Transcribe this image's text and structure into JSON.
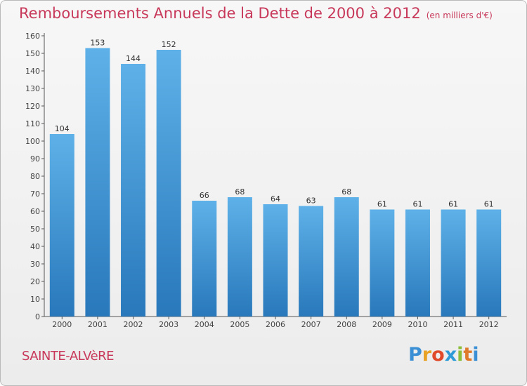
{
  "header": {
    "title": "Remboursements Annuels de la Dette de 2000 à 2012",
    "unit": "(en milliers d'€)"
  },
  "footer": {
    "commune": "SAINTE-ALVèRE",
    "logo_text": "Proxiti"
  },
  "colors": {
    "title": "#c8385a",
    "bar_light": "#5aaee6",
    "bar_dark": "#2a7fc0"
  },
  "chart_data": {
    "type": "bar",
    "title": "Remboursements Annuels de la Dette de 2000 à 2012",
    "subtitle": "(en milliers d'€)",
    "xlabel": "",
    "ylabel": "",
    "categories": [
      "2000",
      "2001",
      "2002",
      "2003",
      "2004",
      "2005",
      "2006",
      "2007",
      "2008",
      "2009",
      "2010",
      "2011",
      "2012"
    ],
    "values": [
      104,
      153,
      144,
      152,
      66,
      68,
      64,
      63,
      68,
      61,
      61,
      61,
      61
    ],
    "ylim": [
      0,
      160
    ],
    "yticks": [
      0,
      10,
      20,
      30,
      40,
      50,
      60,
      70,
      80,
      90,
      100,
      110,
      120,
      130,
      140,
      150,
      160
    ],
    "grid": false,
    "legend": "none"
  }
}
